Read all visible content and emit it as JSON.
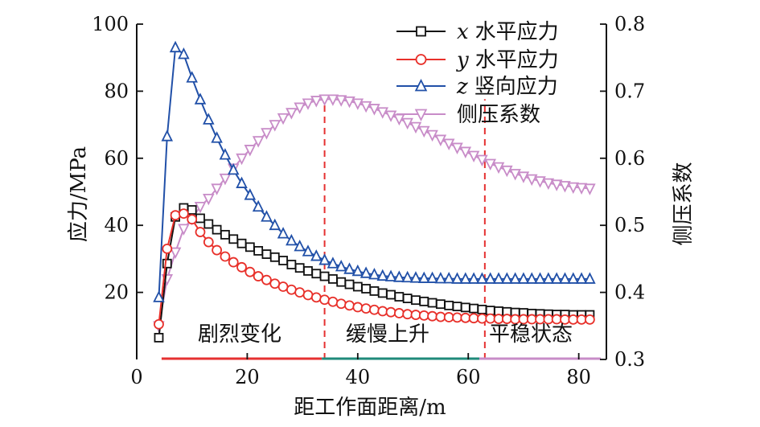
{
  "chart_data": {
    "type": "line",
    "xlabel": "距工作面距离/m",
    "ylabel": "应力/MPa",
    "y2label": "侧压系数",
    "xlim": [
      0,
      85
    ],
    "ylim": [
      0,
      100
    ],
    "y2lim": [
      0.3,
      0.8
    ],
    "xticks": [
      0,
      20,
      40,
      60,
      80
    ],
    "yticks": [
      20,
      40,
      60,
      80,
      100
    ],
    "y2ticks": [
      0.3,
      0.4,
      0.5,
      0.6,
      0.7,
      0.8
    ],
    "grid": false,
    "legend_position": "top-right",
    "series": [
      {
        "name": "x 水平应力",
        "name_var": "x",
        "name_rest": "水平应力",
        "axis": "left",
        "color": "#111111",
        "marker": "square",
        "x": [
          4,
          5.5,
          7,
          8.5,
          10,
          11.5,
          13,
          14.5,
          16,
          17.5,
          19,
          20.5,
          22,
          23.5,
          25,
          26.5,
          28,
          29.5,
          31,
          32.5,
          34,
          35.5,
          37,
          38.5,
          40,
          41.5,
          43,
          44.5,
          46,
          47.5,
          49,
          50.5,
          52,
          53.5,
          55,
          56.5,
          58,
          59.5,
          61,
          62.5,
          64,
          65.5,
          67,
          68.5,
          70,
          71.5,
          73,
          74.5,
          76,
          77.5,
          79,
          80.5,
          82
        ],
        "y": [
          6.5,
          28.6,
          42.5,
          45.2,
          44.6,
          42.1,
          40.4,
          38.7,
          37.2,
          35.9,
          34.6,
          33.5,
          32.4,
          31.4,
          30.5,
          29.5,
          28.3,
          27.3,
          26.4,
          25.6,
          24.8,
          24.0,
          23.1,
          22.4,
          21.7,
          21.1,
          20.4,
          19.8,
          19.3,
          18.7,
          18.2,
          17.7,
          17.3,
          16.9,
          16.5,
          16.1,
          15.8,
          15.5,
          15.2,
          14.9,
          14.6,
          14.4,
          14.2,
          14.0,
          13.9,
          13.7,
          13.6,
          13.5,
          13.4,
          13.4,
          13.3,
          13.3,
          13.3
        ]
      },
      {
        "name": "y 水平应力",
        "name_var": "y",
        "name_rest": "水平应力",
        "axis": "left",
        "color": "#e8302a",
        "marker": "circle",
        "x": [
          4,
          5.5,
          7,
          8.5,
          10,
          11.5,
          13,
          14.5,
          16,
          17.5,
          19,
          20.5,
          22,
          23.5,
          25,
          26.5,
          28,
          29.5,
          31,
          32.5,
          34,
          35.5,
          37,
          38.5,
          40,
          41.5,
          43,
          44.5,
          46,
          47.5,
          49,
          50.5,
          52,
          53.5,
          55,
          56.5,
          58,
          59.5,
          61,
          62.5,
          64,
          65.5,
          67,
          68.5,
          70,
          71.5,
          73,
          74.5,
          76,
          77.5,
          79,
          80.5,
          82
        ],
        "y": [
          10.5,
          33.0,
          43.0,
          43.5,
          41.8,
          38.0,
          35.0,
          32.6,
          30.7,
          29.0,
          27.5,
          26.1,
          24.8,
          23.7,
          22.6,
          21.7,
          20.8,
          20.0,
          19.2,
          18.5,
          17.8,
          17.2,
          16.6,
          16.1,
          15.6,
          15.2,
          14.8,
          14.4,
          14.1,
          13.8,
          13.5,
          13.3,
          13.1,
          12.9,
          12.7,
          12.6,
          12.5,
          12.4,
          12.3,
          12.2,
          12.2,
          12.1,
          12.1,
          12.0,
          12.0,
          12.0,
          12.0,
          12.0,
          12.0,
          11.9,
          11.9,
          11.9,
          11.9
        ]
      },
      {
        "name": "z 竖向应力",
        "name_var": "z",
        "name_rest": "竖向应力",
        "axis": "left",
        "color": "#2150a8",
        "marker": "triangle-up",
        "x": [
          4,
          5.5,
          7,
          8.5,
          10,
          11.5,
          13,
          14.5,
          16,
          17.5,
          19,
          20.5,
          22,
          23.5,
          25,
          26.5,
          28,
          29.5,
          31,
          32.5,
          34,
          35.5,
          37,
          38.5,
          40,
          41.5,
          43,
          44.5,
          46,
          47.5,
          49,
          50.5,
          52,
          53.5,
          55,
          56.5,
          58,
          59.5,
          61,
          62.5,
          64,
          65.5,
          67,
          68.5,
          70,
          71.5,
          73,
          74.5,
          76,
          77.5,
          79,
          80.5,
          82
        ],
        "y": [
          18.5,
          66.5,
          93.0,
          91.0,
          84.0,
          77.5,
          71.5,
          66.0,
          61.0,
          56.5,
          52.5,
          49.0,
          45.5,
          42.5,
          40.0,
          37.5,
          35.4,
          33.7,
          32.2,
          30.8,
          29.6,
          28.6,
          27.7,
          26.9,
          26.3,
          25.7,
          25.3,
          24.9,
          24.7,
          24.5,
          24.4,
          24.3,
          24.2,
          24.2,
          24.1,
          24.1,
          24.0,
          24.0,
          24.0,
          24.0,
          24.0,
          24.0,
          24.0,
          24.0,
          24.0,
          24.0,
          24.0,
          24.0,
          24.0,
          24.0,
          24.0,
          24.0,
          24.0
        ]
      },
      {
        "name": "侧压系数",
        "axis": "right",
        "color": "#c88cc8",
        "marker": "triangle-down",
        "x": [
          4,
          5.5,
          7,
          8.5,
          10,
          11.5,
          13,
          14.5,
          16,
          17.5,
          19,
          20.5,
          22,
          23.5,
          25,
          26.5,
          28,
          29.5,
          31,
          32.5,
          34,
          35.5,
          37,
          38.5,
          40,
          41.5,
          43,
          44.5,
          46,
          47.5,
          49,
          50.5,
          52,
          53.5,
          55,
          56.5,
          58,
          59.5,
          61,
          62.5,
          64,
          65.5,
          67,
          68.5,
          70,
          71.5,
          73,
          74.5,
          76,
          77.5,
          79,
          80.5,
          82
        ],
        "y": [
          0.35,
          0.42,
          0.46,
          0.495,
          0.51,
          0.528,
          0.54,
          0.555,
          0.57,
          0.585,
          0.6,
          0.613,
          0.626,
          0.638,
          0.65,
          0.66,
          0.668,
          0.676,
          0.682,
          0.686,
          0.688,
          0.688,
          0.687,
          0.685,
          0.682,
          0.678,
          0.674,
          0.669,
          0.664,
          0.659,
          0.653,
          0.647,
          0.641,
          0.635,
          0.628,
          0.622,
          0.616,
          0.61,
          0.604,
          0.598,
          0.592,
          0.587,
          0.582,
          0.577,
          0.573,
          0.569,
          0.566,
          0.563,
          0.561,
          0.559,
          0.557,
          0.556,
          0.555
        ]
      }
    ],
    "phase_dividers_x": [
      34,
      63
    ],
    "phases": [
      {
        "label": "剧烈变化",
        "x0": 4.5,
        "x1": 33.5,
        "color": "#e53131"
      },
      {
        "label": "缓慢上升",
        "x0": 33.5,
        "x1": 62,
        "color": "#1f8a7a"
      },
      {
        "label": "平稳状态",
        "x0": 62,
        "x1": 84,
        "color": "#c88cc8"
      }
    ]
  }
}
